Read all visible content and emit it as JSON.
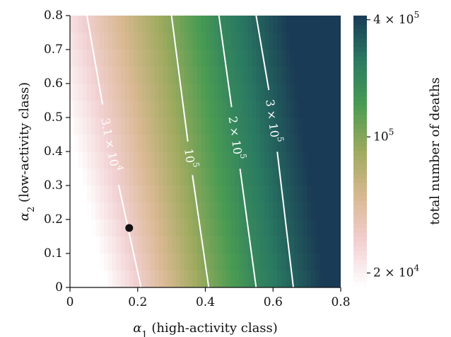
{
  "chart_data": {
    "type": "heatmap",
    "xlabel": "α1 (high-activity class)",
    "xlabel_parts": {
      "symbol": "α",
      "sub": "1",
      "rest": " (high-activity class)"
    },
    "ylabel": "α2 (low-activity class)",
    "ylabel_parts": {
      "symbol": "α",
      "sub": "2",
      "rest": " (low-activity class)"
    },
    "xlim": [
      0,
      0.8
    ],
    "ylim": [
      0,
      0.8
    ],
    "x_ticks": [
      "0",
      "0.2",
      "0.4",
      "0.6",
      "0.8"
    ],
    "x_tick_values": [
      0,
      0.2,
      0.4,
      0.6,
      0.8
    ],
    "y_ticks": [
      "0",
      "0.1",
      "0.2",
      "0.3",
      "0.4",
      "0.5",
      "0.6",
      "0.7",
      "0.8"
    ],
    "y_tick_values": [
      0,
      0.1,
      0.2,
      0.3,
      0.4,
      0.5,
      0.6,
      0.7,
      0.8
    ],
    "colorbar": {
      "label": "total number of deaths",
      "scale": "log",
      "range": [
        17000,
        420000
      ],
      "ticks": [
        {
          "value": 400000,
          "base": "4 × 10",
          "exp": "5"
        },
        {
          "value": 100000,
          "base": "10",
          "exp": "5"
        },
        {
          "value": 20000,
          "base": "2 × 10",
          "exp": "4"
        }
      ],
      "colors": [
        "#ffffff",
        "#f2d0d2",
        "#d8b890",
        "#9eaa5e",
        "#4a9c52",
        "#2a7a62",
        "#1a3b55"
      ]
    },
    "contours": [
      {
        "value": 31000,
        "label_base": "3.1 × 10",
        "label_exp": "4",
        "x_at_y0": 0.21,
        "x_at_y08": 0.05,
        "label_at": [
          0.12,
          0.42
        ]
      },
      {
        "value": 100000,
        "label_base": "10",
        "label_exp": "5",
        "x_at_y0": 0.41,
        "x_at_y08": 0.3,
        "label_at": [
          0.355,
          0.38
        ]
      },
      {
        "value": 200000,
        "label_base": "2 × 10",
        "label_exp": "5",
        "x_at_y0": 0.55,
        "x_at_y08": 0.44,
        "label_at": [
          0.49,
          0.44
        ]
      },
      {
        "value": 300000,
        "label_base": "3 × 10",
        "label_exp": "5",
        "x_at_y0": 0.66,
        "x_at_y08": 0.55,
        "label_at": [
          0.6,
          0.49
        ]
      }
    ],
    "marker": {
      "x": 0.175,
      "y": 0.175,
      "color": "#111111"
    },
    "grid": false
  }
}
